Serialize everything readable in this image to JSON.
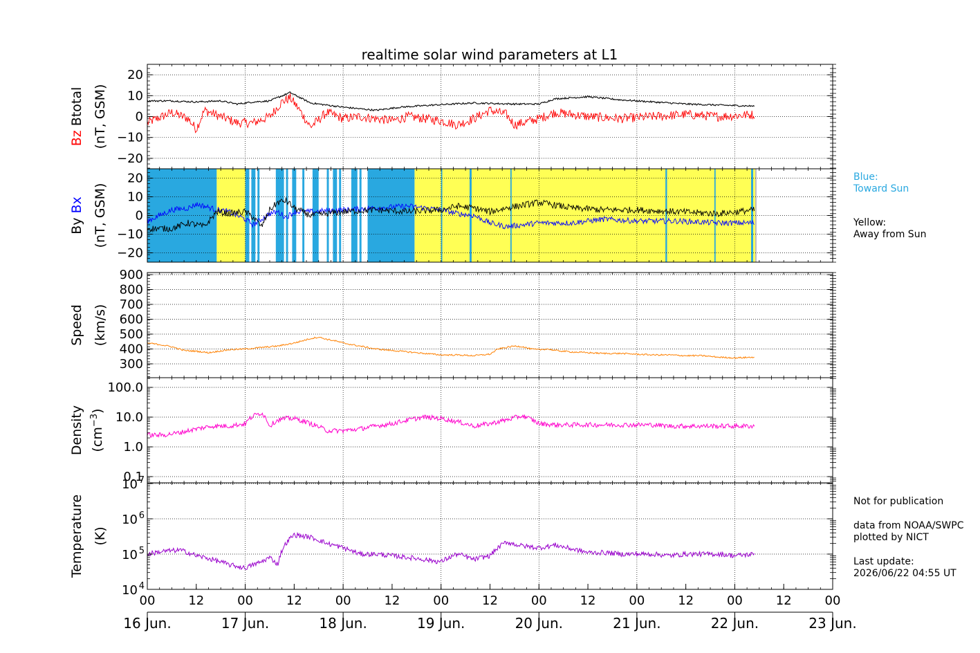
{
  "title": "realtime solar wind parameters at L1",
  "colors": {
    "btotal": "#000000",
    "bz": "#ff0000",
    "bx": "#0000ff",
    "by": "#000000",
    "speed": "#ff8000",
    "density": "#ff00cc",
    "temperature": "#9900cc",
    "toward_sun_bg": "#29a8e0",
    "away_sun_bg": "#ffff55",
    "blue_note": "#29a8e0"
  },
  "x_axis": {
    "tick_labels": [
      "00",
      "12",
      "00",
      "12",
      "00",
      "12",
      "00",
      "12",
      "00",
      "12",
      "00",
      "12",
      "00",
      "12",
      "00"
    ],
    "date_labels": [
      "16 Jun.",
      "17 Jun.",
      "18 Jun.",
      "19 Jun.",
      "20 Jun.",
      "21 Jun.",
      "22 Jun.",
      "23 Jun."
    ],
    "range_hours": [
      0,
      168
    ],
    "data_end_hours": 149
  },
  "panels": {
    "btotal": {
      "ylabel_line1_red": "Bz",
      "ylabel_line1_black": "Btotal",
      "ylabel_line2": "(nT, GSM)",
      "tick_labels": [
        "20",
        "10",
        "0",
        "−10",
        "−20"
      ]
    },
    "bxby": {
      "ylabel_line1_black": "By",
      "ylabel_line1_blue": "Bx",
      "ylabel_line2": "(nT, GSM)",
      "tick_labels": [
        "20",
        "10",
        "0",
        "−10",
        "−20"
      ]
    },
    "speed": {
      "ylabel_line1": "Speed",
      "ylabel_line2": "(km/s)",
      "tick_labels": [
        "900",
        "800",
        "700",
        "600",
        "500",
        "400",
        "300"
      ]
    },
    "density": {
      "ylabel_line1": "Density",
      "ylabel_line2": "(cm",
      "ylabel_sup": "−3",
      "ylabel_close": ")",
      "tick_labels": [
        "100.0",
        "10.0",
        "1.0",
        "0.1"
      ]
    },
    "temperature": {
      "ylabel_line1": "Temperature",
      "ylabel_line2": "(K)",
      "tick_base": "10",
      "tick_exponents": [
        "7",
        "6",
        "5",
        "4"
      ]
    }
  },
  "notes": {
    "blue_note": "Blue:\nToward Sun",
    "yellow_note": "Yellow:\nAway from Sun",
    "publication": "Not for publication",
    "source": "data from NOAA/SWPC\nplotted by NICT",
    "update": "Last update:\n2026/06/22 04:55 UT"
  },
  "chart_data": [
    {
      "type": "line",
      "panel": "btotal",
      "ylim": [
        -25,
        25
      ],
      "x_units": "hours since 16 Jun. 00 UT",
      "series": [
        {
          "name": "Btotal",
          "x": [
            0,
            6,
            12,
            18,
            22,
            26,
            30,
            35,
            40,
            48,
            56,
            62,
            70,
            80,
            90,
            96,
            100,
            108,
            116,
            124,
            132,
            140,
            149
          ],
          "values": [
            7.5,
            7.5,
            7,
            7.5,
            6,
            7,
            7.5,
            11.5,
            6.5,
            4.5,
            3,
            4.5,
            5.5,
            6.5,
            6,
            6,
            8.5,
            9.5,
            8,
            7,
            6,
            5.5,
            5
          ]
        },
        {
          "name": "Bz",
          "x": [
            0,
            6,
            10,
            12,
            14,
            18,
            22,
            26,
            30,
            33,
            35,
            37,
            40,
            44,
            48,
            52,
            56,
            60,
            64,
            68,
            72,
            76,
            80,
            84,
            88,
            90,
            96,
            100,
            108,
            116,
            124,
            132,
            140,
            149
          ],
          "values": [
            -3,
            2,
            -1,
            -6,
            3,
            0,
            -3,
            -3,
            0,
            7,
            9,
            4,
            -5,
            2,
            -1,
            0,
            -1,
            -2,
            0,
            -1,
            -2,
            -4,
            -1,
            3,
            1,
            -4,
            -1,
            2,
            0,
            -1,
            0,
            1,
            0,
            1
          ]
        }
      ]
    },
    {
      "type": "line",
      "panel": "bxby",
      "ylim": [
        -25,
        25
      ],
      "x_units": "hours since 16 Jun. 00 UT",
      "series": [
        {
          "name": "Bx",
          "x": [
            0,
            6,
            10,
            12,
            14,
            17,
            20,
            24,
            26,
            28,
            30,
            32,
            34,
            36,
            40,
            48,
            56,
            64,
            72,
            76,
            80,
            84,
            88,
            96,
            104,
            112,
            120,
            130,
            140,
            149
          ],
          "values": [
            -3,
            3,
            4,
            6,
            5,
            3,
            2,
            -2,
            -5,
            -2,
            1,
            2,
            -1,
            2,
            2,
            3,
            4,
            5,
            3,
            1,
            0,
            -4,
            -6,
            -4,
            -4,
            -2,
            -3,
            -3,
            -4,
            -4
          ]
        },
        {
          "name": "By",
          "x": [
            0,
            6,
            10,
            12,
            14,
            17,
            20,
            24,
            26,
            28,
            30,
            32,
            34,
            36,
            40,
            48,
            56,
            64,
            72,
            76,
            80,
            84,
            88,
            96,
            104,
            112,
            120,
            130,
            140,
            149
          ],
          "values": [
            -7,
            -7,
            -4,
            -5,
            -6,
            2,
            1,
            2,
            -1,
            -6,
            3,
            7,
            8,
            4,
            0,
            2,
            3,
            2,
            3,
            5,
            4,
            2,
            4,
            7,
            4,
            3,
            3,
            2,
            1,
            3
          ]
        }
      ],
      "background": {
        "toward_sun_hours": [
          [
            0,
            17
          ],
          [
            24,
            25
          ],
          [
            25.5,
            26.5
          ],
          [
            27,
            27.5
          ],
          [
            31.5,
            33.5
          ],
          [
            34,
            34.5
          ],
          [
            35.5,
            36.5
          ],
          [
            38,
            38.5
          ],
          [
            40.5,
            42
          ],
          [
            44,
            44.5
          ],
          [
            45.5,
            46.5
          ],
          [
            47,
            47.5
          ],
          [
            50,
            51.5
          ],
          [
            52,
            52.5
          ],
          [
            54,
            65.5
          ],
          [
            72,
            72.3
          ],
          [
            79,
            79.5
          ],
          [
            89,
            89.3
          ],
          [
            127,
            127.4
          ],
          [
            139,
            139.3
          ],
          [
            148,
            148.5
          ]
        ],
        "away_sun_hours": [
          [
            17,
            24
          ],
          [
            65.5,
            149
          ]
        ]
      }
    },
    {
      "type": "line",
      "panel": "speed",
      "ylim": [
        200,
        900
      ],
      "x_units": "hours since 16 Jun. 00 UT",
      "series": [
        {
          "name": "Speed",
          "x": [
            0,
            3,
            6,
            9,
            12,
            15,
            20,
            24,
            28,
            32,
            36,
            40,
            42,
            44,
            46,
            48,
            52,
            56,
            60,
            64,
            68,
            72,
            76,
            80,
            84,
            86,
            88,
            90,
            92,
            94,
            96,
            98,
            100,
            104,
            108,
            112,
            116,
            120,
            124,
            128,
            132,
            136,
            140,
            144,
            149
          ],
          "values": [
            440,
            430,
            415,
            390,
            385,
            375,
            395,
            400,
            410,
            420,
            440,
            470,
            480,
            465,
            455,
            440,
            420,
            400,
            390,
            380,
            370,
            360,
            360,
            355,
            365,
            400,
            410,
            420,
            415,
            400,
            395,
            400,
            390,
            380,
            375,
            370,
            370,
            365,
            360,
            360,
            355,
            355,
            345,
            340,
            345
          ]
        }
      ]
    },
    {
      "type": "line",
      "panel": "density",
      "scale": "log",
      "ylim": [
        0.07,
        200
      ],
      "x_units": "hours since 16 Jun. 00 UT",
      "series": [
        {
          "name": "Density",
          "x": [
            0,
            4,
            8,
            12,
            16,
            20,
            24,
            26,
            28,
            30,
            32,
            34,
            36,
            40,
            44,
            48,
            52,
            56,
            60,
            64,
            68,
            72,
            76,
            80,
            84,
            88,
            92,
            96,
            100,
            104,
            108,
            112,
            116,
            120,
            124,
            128,
            132,
            136,
            140,
            144,
            149
          ],
          "values": [
            2.5,
            2.5,
            3,
            4,
            5,
            5,
            6,
            11,
            14,
            5,
            8,
            9,
            9,
            6,
            3.5,
            3.5,
            4,
            5,
            6,
            8,
            10,
            9,
            7,
            5,
            6,
            8,
            11,
            6,
            5.5,
            5.5,
            5.5,
            5.5,
            5.5,
            5.5,
            5.5,
            5,
            5,
            5,
            5,
            5,
            5
          ]
        }
      ]
    },
    {
      "type": "line",
      "panel": "temperature",
      "scale": "log",
      "ylim": [
        6000,
        20000000
      ],
      "x_units": "hours since 16 Jun. 00 UT",
      "series": [
        {
          "name": "Temperature",
          "x": [
            0,
            4,
            8,
            12,
            16,
            20,
            24,
            26,
            28,
            30,
            32,
            34,
            36,
            40,
            44,
            48,
            52,
            56,
            60,
            64,
            68,
            72,
            76,
            80,
            84,
            86,
            88,
            90,
            92,
            96,
            100,
            104,
            108,
            112,
            116,
            120,
            124,
            128,
            132,
            136,
            140,
            144,
            149
          ],
          "values": [
            100000,
            120000,
            130000,
            90000,
            70000,
            50000,
            40000,
            50000,
            60000,
            80000,
            50000,
            200000,
            350000,
            300000,
            200000,
            150000,
            100000,
            100000,
            90000,
            80000,
            70000,
            60000,
            100000,
            70000,
            90000,
            150000,
            220000,
            190000,
            170000,
            150000,
            180000,
            140000,
            110000,
            110000,
            100000,
            100000,
            100000,
            90000,
            100000,
            100000,
            100000,
            90000,
            100000
          ]
        }
      ]
    }
  ]
}
